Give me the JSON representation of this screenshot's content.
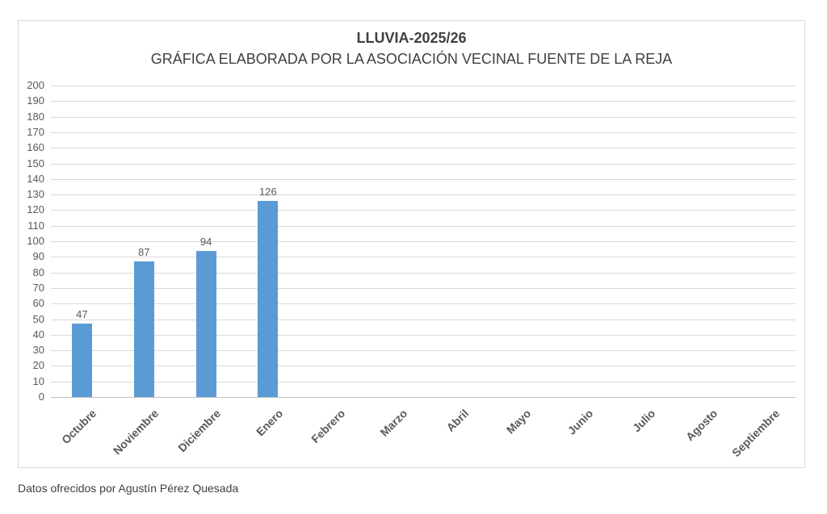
{
  "chart": {
    "title": "LLUVIA-2025/26",
    "subtitle": "GRÁFICA ELABORADA POR LA ASOCIACIÓN VECINAL FUENTE DE LA REJA"
  },
  "chart_data": {
    "type": "bar",
    "title": "LLUVIA-2025/26",
    "subtitle": "GRÁFICA ELABORADA POR LA ASOCIACIÓN VECINAL FUENTE DE LA REJA",
    "categories": [
      "Octubre",
      "Noviembre",
      "Diciembre",
      "Enero",
      "Febrero",
      "Marzo",
      "Abril",
      "Mayo",
      "Junio",
      "Julio",
      "Agosto",
      "Septiembre"
    ],
    "values": [
      47,
      87,
      94,
      126,
      null,
      null,
      null,
      null,
      null,
      null,
      null,
      null
    ],
    "xlabel": "",
    "ylabel": "",
    "ylim": [
      0,
      200
    ],
    "ytick_step": 10,
    "grid": true,
    "legend": false,
    "data_labels": true,
    "bar_color": "#5B9BD5",
    "gridline_color": "#D9D9D9",
    "axis_line_color": "#BFBFBF",
    "axis_text_color": "#595959",
    "title_color": "#404040",
    "frame_border_color": "#D9D9D9"
  },
  "footer": {
    "caption": "Datos ofrecidos por Agustín Pérez Quesada"
  }
}
